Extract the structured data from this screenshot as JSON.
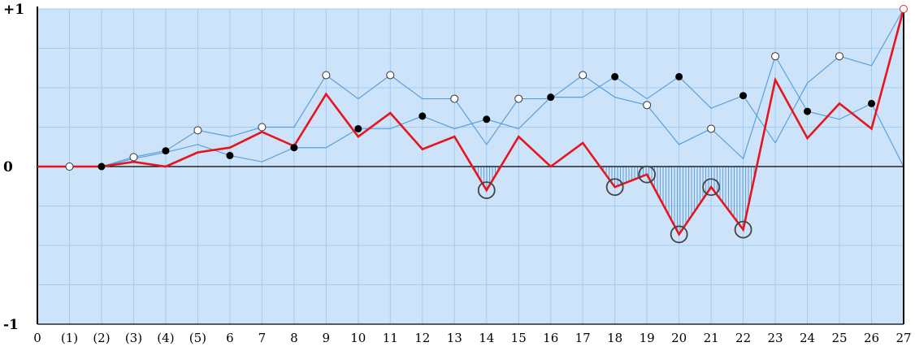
{
  "chart_data": {
    "type": "line",
    "title": "",
    "xlabel": "",
    "ylabel": "",
    "x": [
      0,
      1,
      2,
      3,
      4,
      5,
      6,
      7,
      8,
      9,
      10,
      11,
      12,
      13,
      14,
      15,
      16,
      17,
      18,
      19,
      20,
      21,
      22,
      23,
      24,
      25,
      26,
      27
    ],
    "x_tick_labels": [
      "0",
      "(1)",
      "(2)",
      "(3)",
      "(4)",
      "(5)",
      "6",
      "7",
      "8",
      "9",
      "10",
      "11",
      "12",
      "13",
      "14",
      "15",
      "16",
      "17",
      "18",
      "19",
      "20",
      "21",
      "22",
      "23",
      "24",
      "25",
      "26",
      "27"
    ],
    "y_tick_labels": [
      "+1",
      "0",
      "-1"
    ],
    "y_ticks": [
      1,
      0,
      -1
    ],
    "ylim": [
      -1,
      1
    ],
    "xlim": [
      0,
      27
    ],
    "grid": true,
    "series": [
      {
        "role": "primary",
        "color": "#e8141c",
        "values": [
          0,
          0,
          0,
          0.03,
          0,
          0.09,
          0.12,
          0.22,
          0.13,
          0.46,
          0.19,
          0.34,
          0.11,
          0.19,
          -0.15,
          0.19,
          0,
          0.15,
          -0.13,
          -0.05,
          -0.43,
          -0.13,
          -0.4,
          0.55,
          0.18,
          0.4,
          0.24,
          1
        ]
      },
      {
        "role": "upper",
        "color": "#5aa0dc",
        "values": [
          0,
          0,
          0,
          0.06,
          0.1,
          0.23,
          0.19,
          0.25,
          0.25,
          0.58,
          0.43,
          0.58,
          0.43,
          0.43,
          0.14,
          0.43,
          0.43,
          0.58,
          0.44,
          0.39,
          0.14,
          0.24,
          0.05,
          0.7,
          0.35,
          0.3,
          0.4,
          0
        ]
      },
      {
        "role": "lower",
        "color": "#5aa0dc",
        "values": [
          0,
          0,
          0,
          0.05,
          0.09,
          0.14,
          0.07,
          0.03,
          0.12,
          0.12,
          0.24,
          0.24,
          0.32,
          0.24,
          0.3,
          0.24,
          0.44,
          0.44,
          0.57,
          0.43,
          0.57,
          0.37,
          0.45,
          0.15,
          0.53,
          0.7,
          0.64,
          1
        ]
      }
    ],
    "markers": {
      "open": [
        {
          "x": 1,
          "y": 0
        },
        {
          "x": 3,
          "y": 0.06
        },
        {
          "x": 5,
          "y": 0.23
        },
        {
          "x": 7,
          "y": 0.25
        },
        {
          "x": 9,
          "y": 0.58
        },
        {
          "x": 11,
          "y": 0.58
        },
        {
          "x": 13,
          "y": 0.43
        },
        {
          "x": 15,
          "y": 0.43
        },
        {
          "x": 17,
          "y": 0.58
        },
        {
          "x": 19,
          "y": 0.39
        },
        {
          "x": 21,
          "y": 0.24
        },
        {
          "x": 23,
          "y": 0.7
        },
        {
          "x": 25,
          "y": 0.7
        },
        {
          "x": 27,
          "y": 1
        }
      ],
      "filled": [
        {
          "x": 2,
          "y": 0
        },
        {
          "x": 4,
          "y": 0.1
        },
        {
          "x": 6,
          "y": 0.07
        },
        {
          "x": 8,
          "y": 0.12
        },
        {
          "x": 10,
          "y": 0.24
        },
        {
          "x": 12,
          "y": 0.32
        },
        {
          "x": 14,
          "y": 0.3
        },
        {
          "x": 16,
          "y": 0.44
        },
        {
          "x": 18,
          "y": 0.57
        },
        {
          "x": 20,
          "y": 0.57
        },
        {
          "x": 22,
          "y": 0.45
        },
        {
          "x": 24,
          "y": 0.35
        },
        {
          "x": 26,
          "y": 0.4
        }
      ]
    },
    "circled_points": [
      {
        "x": 14,
        "y": -0.15
      },
      {
        "x": 18,
        "y": -0.13
      },
      {
        "x": 19,
        "y": -0.05
      },
      {
        "x": 20,
        "y": -0.43
      },
      {
        "x": 21,
        "y": -0.13
      },
      {
        "x": 22,
        "y": -0.4
      }
    ],
    "colors": {
      "background": "#cde3fa",
      "grid": "#a2cdf1",
      "primary": "#e8141c",
      "secondary": "#5aa0dc",
      "hatch": "#4a8fd0"
    }
  }
}
